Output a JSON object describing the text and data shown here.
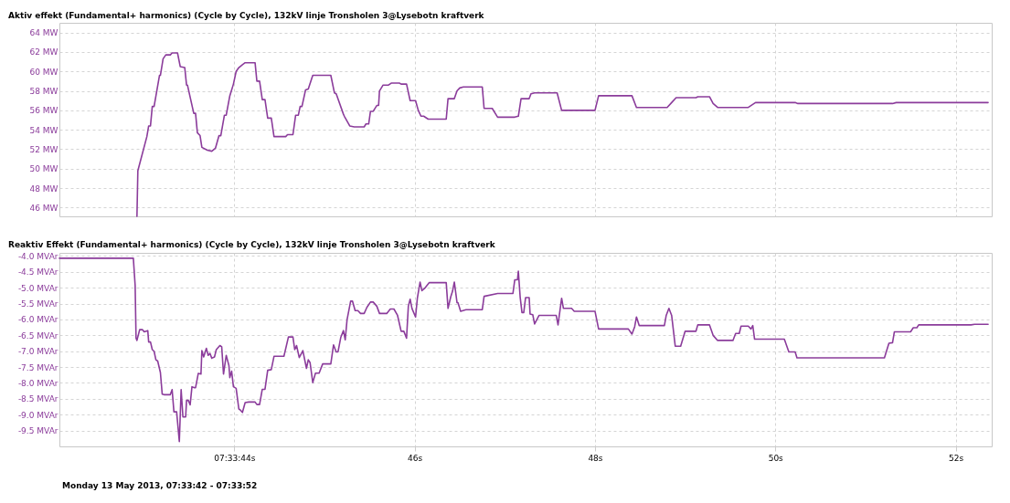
{
  "chart_data": [
    {
      "type": "line",
      "title": "Aktiv effekt  (Fundamental+ harmonics) (Cycle by Cycle), 132kV linje Tronsholen 3@Lysebotn kraftverk",
      "x": [
        42.92,
        42.93,
        43.03,
        43.05,
        43.07,
        43.09,
        43.11,
        43.17,
        43.18,
        43.21,
        43.24,
        43.29,
        43.31,
        43.37,
        43.4,
        43.45,
        43.47,
        43.48,
        43.55,
        43.57,
        43.59,
        43.62,
        43.64,
        43.7,
        43.75,
        43.79,
        43.83,
        43.85,
        43.89,
        43.91,
        43.95,
        43.99,
        44.02,
        44.05,
        44.09,
        44.12,
        44.23,
        44.25,
        44.28,
        44.31,
        44.34,
        44.37,
        44.41,
        44.44,
        44.57,
        44.59,
        44.65,
        44.68,
        44.71,
        44.73,
        44.75,
        44.79,
        44.82,
        44.87,
        45.07,
        45.11,
        45.13,
        45.21,
        45.22,
        45.28,
        45.33,
        45.44,
        45.46,
        45.49,
        45.51,
        45.54,
        45.58,
        45.6,
        45.61,
        45.65,
        45.71,
        45.74,
        45.83,
        45.85,
        45.91,
        45.95,
        46.01,
        46.04,
        46.07,
        46.1,
        46.15,
        46.35,
        46.37,
        46.44,
        46.47,
        46.5,
        46.54,
        46.75,
        46.77,
        46.86,
        46.92,
        47.11,
        47.15,
        47.18,
        47.27,
        47.29,
        47.33,
        47.58,
        47.63,
        48.0,
        48.04,
        48.41,
        48.46,
        48.8,
        48.85,
        48.9,
        49.12,
        49.14,
        49.27,
        49.31,
        49.36,
        49.7,
        49.78,
        50.22,
        50.25,
        51.3,
        51.34,
        52.36
      ],
      "series": [
        {
          "color": "#8b3c9b",
          "values": [
            45.1,
            49.8,
            53.3,
            54.4,
            54.4,
            56.4,
            56.4,
            59.6,
            59.6,
            61.3,
            61.7,
            61.7,
            61.9,
            61.9,
            60.5,
            60.4,
            58.6,
            58.6,
            55.7,
            55.7,
            53.7,
            53.4,
            52.2,
            51.9,
            51.8,
            52.1,
            53.4,
            53.4,
            55.5,
            55.5,
            57.5,
            58.7,
            60.0,
            60.4,
            60.7,
            60.9,
            60.9,
            59.0,
            59.0,
            57.1,
            57.1,
            55.2,
            55.2,
            53.3,
            53.3,
            53.5,
            53.5,
            55.5,
            55.5,
            56.4,
            56.4,
            58.1,
            58.2,
            59.6,
            59.6,
            57.8,
            57.7,
            55.6,
            55.4,
            54.4,
            54.3,
            54.3,
            54.6,
            54.6,
            55.9,
            55.9,
            56.5,
            56.5,
            58.0,
            58.6,
            58.6,
            58.8,
            58.8,
            58.7,
            58.7,
            57.0,
            57.0,
            56.0,
            55.4,
            55.4,
            55.1,
            55.1,
            57.2,
            57.2,
            58.0,
            58.3,
            58.4,
            58.4,
            56.2,
            56.2,
            55.3,
            55.3,
            55.4,
            57.2,
            57.2,
            57.7,
            57.8,
            57.8,
            56.0,
            56.0,
            57.5,
            57.5,
            56.3,
            56.3,
            56.8,
            57.3,
            57.3,
            57.4,
            57.4,
            56.7,
            56.3,
            56.3,
            56.8,
            56.8,
            56.7,
            56.7,
            56.8,
            56.8
          ]
        }
      ],
      "xlim": [
        42.06,
        52.4
      ],
      "xticks": [
        44,
        46,
        48,
        50,
        52
      ],
      "ylim": [
        45.1,
        65
      ],
      "yticks": [
        {
          "value": 46,
          "label": "46 MW"
        },
        {
          "value": 48,
          "label": "48 MW"
        },
        {
          "value": 50,
          "label": "50 MW"
        },
        {
          "value": 52,
          "label": "52 MW"
        },
        {
          "value": 54,
          "label": "54 MW"
        },
        {
          "value": 56,
          "label": "56 MW"
        },
        {
          "value": 58,
          "label": "58 MW"
        },
        {
          "value": 60,
          "label": "60 MW"
        },
        {
          "value": 62,
          "label": "62 MW"
        },
        {
          "value": 64,
          "label": "64 MW"
        }
      ],
      "tick_labels": "y",
      "grid": true
    },
    {
      "type": "line",
      "title": "Reaktiv Effekt (Fundamental+ harmonics) (Cycle by Cycle), 132kV linje Tronsholen 3@Lysebotn kraftverk",
      "x": [
        42.06,
        42.88,
        42.9,
        42.91,
        42.92,
        42.95,
        42.98,
        43.0,
        43.04,
        43.05,
        43.07,
        43.09,
        43.11,
        43.13,
        43.15,
        43.18,
        43.2,
        43.22,
        43.29,
        43.31,
        43.33,
        43.36,
        43.39,
        43.41,
        43.43,
        43.46,
        43.47,
        43.49,
        43.51,
        43.53,
        43.56,
        43.57,
        43.6,
        43.63,
        43.64,
        43.66,
        43.69,
        43.71,
        43.73,
        43.75,
        43.78,
        43.8,
        43.84,
        43.86,
        43.88,
        43.91,
        43.94,
        43.95,
        43.97,
        43.99,
        44.02,
        44.05,
        44.07,
        44.09,
        44.12,
        44.16,
        44.23,
        44.25,
        44.28,
        44.31,
        44.34,
        44.37,
        44.41,
        44.44,
        44.55,
        44.6,
        44.65,
        44.67,
        44.69,
        44.72,
        44.75,
        44.76,
        44.8,
        44.82,
        44.84,
        44.87,
        44.9,
        44.94,
        44.98,
        45.07,
        45.1,
        45.13,
        45.15,
        45.18,
        45.21,
        45.23,
        45.25,
        45.29,
        45.31,
        45.34,
        45.37,
        45.4,
        45.44,
        45.47,
        45.51,
        45.54,
        45.58,
        45.61,
        45.69,
        45.73,
        45.77,
        45.81,
        45.85,
        45.88,
        45.91,
        45.93,
        45.95,
        45.97,
        46.01,
        46.03,
        46.06,
        46.08,
        46.11,
        46.16,
        46.35,
        46.37,
        46.4,
        46.42,
        46.44,
        46.47,
        46.48,
        46.51,
        46.57,
        46.75,
        46.77,
        46.92,
        47.09,
        47.11,
        47.14,
        47.15,
        47.17,
        47.19,
        47.21,
        47.23,
        47.27,
        47.28,
        47.31,
        47.33,
        47.38,
        47.57,
        47.59,
        47.63,
        47.65,
        47.74,
        47.77,
        48.0,
        48.04,
        48.37,
        48.41,
        48.44,
        48.46,
        48.49,
        48.77,
        48.79,
        48.82,
        48.85,
        48.89,
        48.95,
        49.0,
        49.12,
        49.14,
        49.27,
        49.31,
        49.36,
        49.53,
        49.56,
        49.6,
        49.62,
        49.7,
        49.73,
        49.75,
        49.77,
        50.1,
        50.15,
        50.22,
        50.24,
        51.21,
        51.26,
        51.3,
        51.32,
        51.5,
        51.53,
        51.57,
        51.59,
        52.17,
        52.21,
        52.36
      ],
      "series": [
        {
          "color": "#8b3c9b",
          "values": [
            -4.07,
            -4.07,
            -4.93,
            -6.59,
            -6.66,
            -6.32,
            -6.32,
            -6.39,
            -6.35,
            -6.71,
            -6.71,
            -6.95,
            -7.0,
            -7.27,
            -7.31,
            -7.67,
            -8.35,
            -8.37,
            -8.37,
            -8.21,
            -8.91,
            -8.91,
            -9.85,
            -8.21,
            -9.07,
            -9.07,
            -8.55,
            -8.55,
            -8.69,
            -8.12,
            -8.15,
            -8.15,
            -7.7,
            -7.72,
            -6.98,
            -7.18,
            -6.91,
            -7.13,
            -7.07,
            -7.22,
            -7.18,
            -6.95,
            -6.82,
            -6.86,
            -7.72,
            -7.13,
            -7.45,
            -7.83,
            -7.63,
            -8.12,
            -8.17,
            -8.82,
            -8.86,
            -8.93,
            -8.62,
            -8.6,
            -8.6,
            -8.68,
            -8.68,
            -8.2,
            -8.2,
            -7.6,
            -7.58,
            -7.16,
            -7.16,
            -6.55,
            -6.55,
            -6.95,
            -6.82,
            -7.2,
            -7.04,
            -6.98,
            -7.54,
            -7.27,
            -7.36,
            -7.99,
            -7.69,
            -7.69,
            -7.4,
            -7.4,
            -6.8,
            -7.02,
            -7.02,
            -6.57,
            -6.35,
            -6.64,
            -6.01,
            -5.42,
            -5.42,
            -5.72,
            -5.72,
            -5.81,
            -5.81,
            -5.62,
            -5.45,
            -5.45,
            -5.58,
            -5.81,
            -5.81,
            -5.67,
            -5.67,
            -5.87,
            -6.37,
            -6.37,
            -6.59,
            -5.58,
            -5.36,
            -5.65,
            -5.92,
            -5.33,
            -4.82,
            -5.09,
            -5.02,
            -4.84,
            -4.84,
            -5.65,
            -5.29,
            -5.11,
            -4.82,
            -5.47,
            -5.47,
            -5.74,
            -5.69,
            -5.69,
            -5.27,
            -5.18,
            -5.18,
            -4.75,
            -4.75,
            -4.48,
            -5.29,
            -5.78,
            -5.78,
            -5.31,
            -5.31,
            -5.83,
            -5.85,
            -6.14,
            -5.87,
            -5.87,
            -6.17,
            -5.33,
            -5.65,
            -5.65,
            -5.74,
            -5.74,
            -6.3,
            -6.3,
            -6.46,
            -6.23,
            -5.92,
            -6.19,
            -6.19,
            -5.87,
            -5.65,
            -5.87,
            -6.84,
            -6.84,
            -6.37,
            -6.37,
            -6.17,
            -6.17,
            -6.5,
            -6.66,
            -6.66,
            -6.44,
            -6.44,
            -6.21,
            -6.21,
            -6.3,
            -6.19,
            -6.62,
            -6.62,
            -7.02,
            -7.02,
            -7.21,
            -7.21,
            -6.75,
            -6.73,
            -6.39,
            -6.39,
            -6.26,
            -6.26,
            -6.17,
            -6.17,
            -6.15,
            -6.15
          ]
        }
      ],
      "xlim": [
        42.06,
        52.4
      ],
      "xticks": [
        {
          "value": 44,
          "label": "07:33:44s"
        },
        {
          "value": 46,
          "label": "46s"
        },
        {
          "value": 48,
          "label": "48s"
        },
        {
          "value": 50,
          "label": "50s"
        },
        {
          "value": 52,
          "label": "52s"
        }
      ],
      "ylim": [
        -10,
        -3.9
      ],
      "yticks": [
        {
          "value": -4,
          "label": "-4.0 MVAr"
        },
        {
          "value": -4.5,
          "label": "-4.5 MVAr"
        },
        {
          "value": -5,
          "label": "-5.0 MVAr"
        },
        {
          "value": -5.5,
          "label": "-5.5 MVAr"
        },
        {
          "value": -6,
          "label": "-6.0 MVAr"
        },
        {
          "value": -6.5,
          "label": "-6.5 MVAr"
        },
        {
          "value": -7,
          "label": "-7.0 MVAr"
        },
        {
          "value": -7.5,
          "label": "-7.5 MVAr"
        },
        {
          "value": -8,
          "label": "-8.0 MVAr"
        },
        {
          "value": -8.5,
          "label": "-8.5 MVAr"
        },
        {
          "value": -9,
          "label": "-9.0 MVAr"
        },
        {
          "value": -9.5,
          "label": "-9.5 MVAr"
        }
      ],
      "grid": true,
      "annotations": [
        "Monday 13 May 2013, 07:33:42 - 07:33:52"
      ]
    }
  ]
}
